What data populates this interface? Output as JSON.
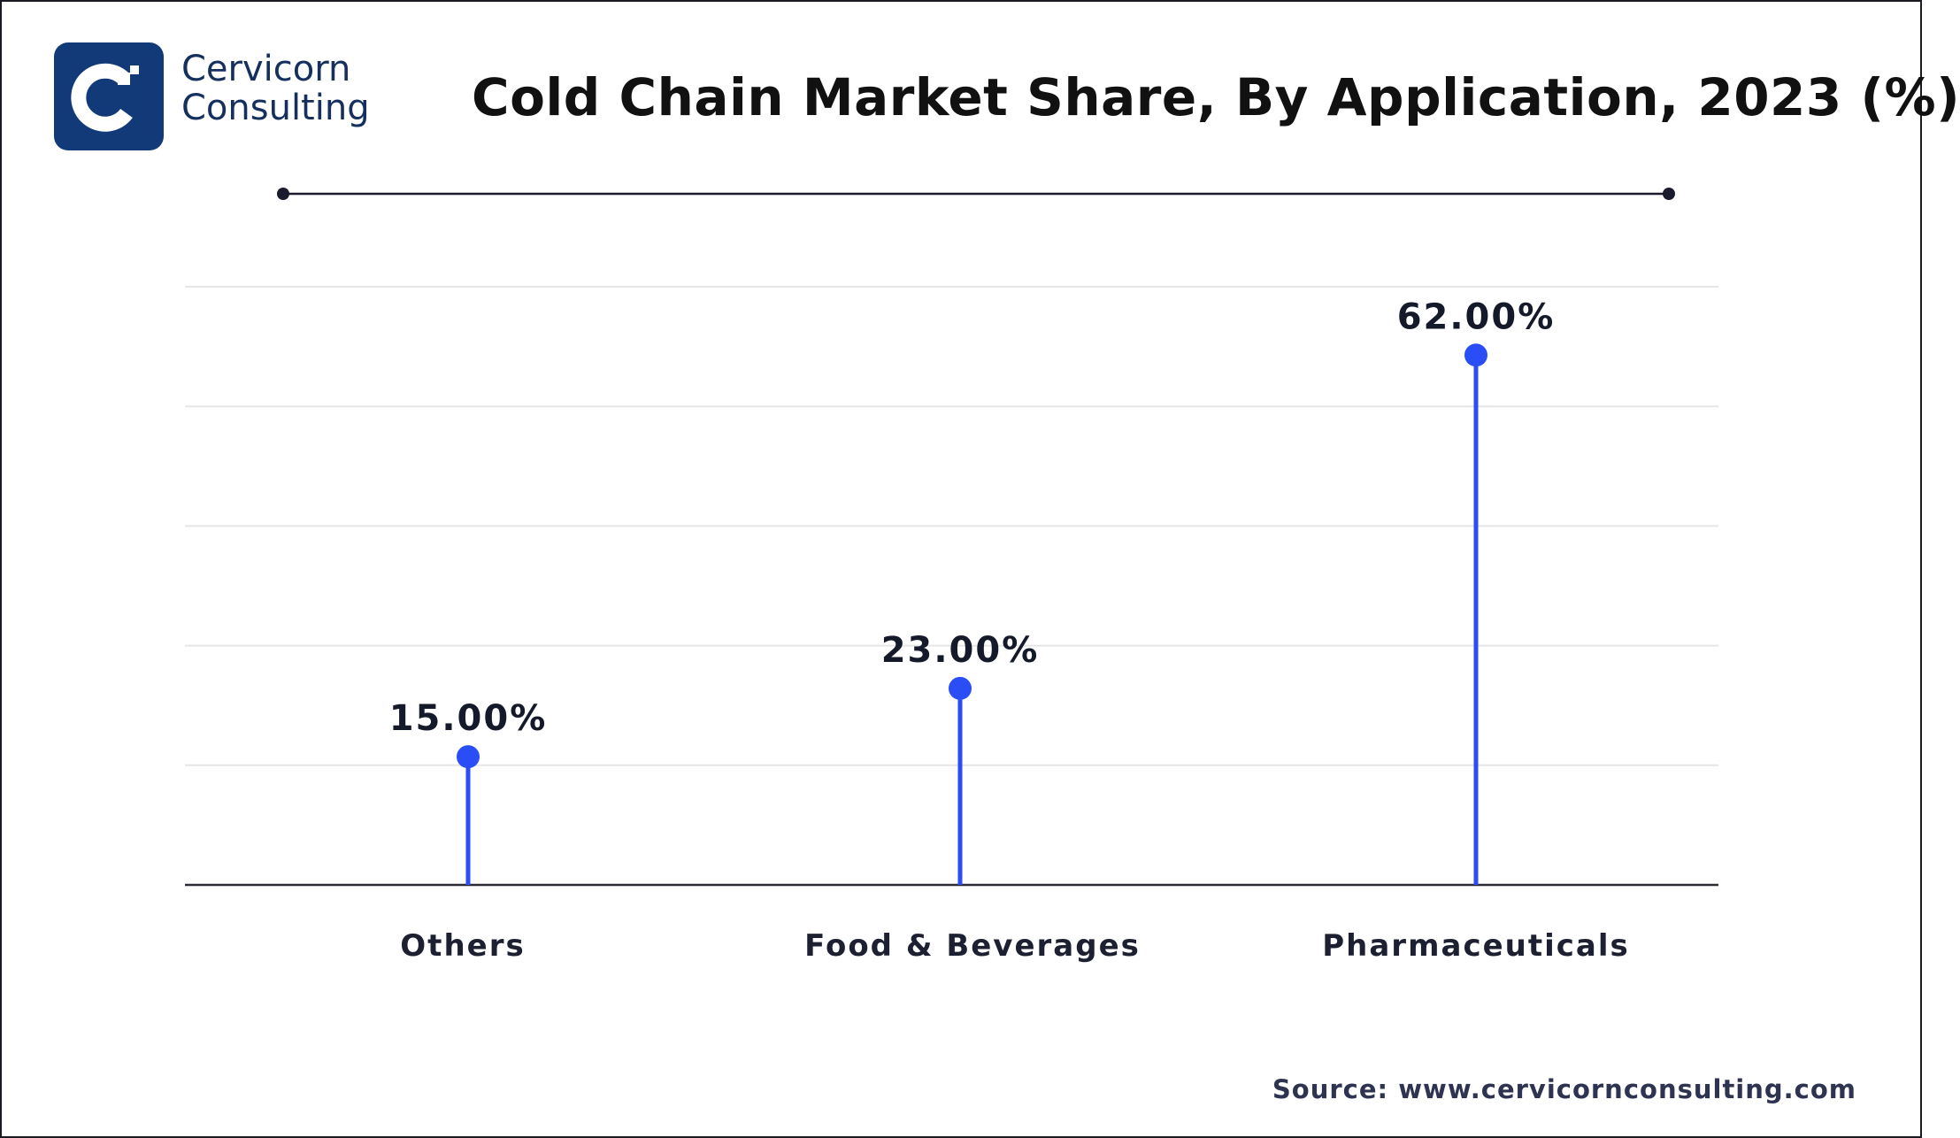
{
  "brand": {
    "line1": "Cervicorn",
    "line2": "Consulting"
  },
  "title": "Cold Chain Market Share, By Application, 2023 (%)",
  "source": "Source: www.cervicornconsulting.com",
  "colors": {
    "accent": "#2a4df5",
    "text": "#111111",
    "grid": "#e6e6e6",
    "brand": "#123a78"
  },
  "chart_data": {
    "type": "lollipop",
    "title": "Cold Chain Market Share, By Application, 2023 (%)",
    "categories": [
      "Others",
      "Food & Beverages",
      "Pharmaceuticals"
    ],
    "values": [
      15,
      23,
      62
    ],
    "labels": [
      "15.00%",
      "23.00%",
      "62.00%"
    ],
    "ylim": [
      0,
      70
    ],
    "grid": true,
    "xlabel": "",
    "ylabel": ""
  }
}
